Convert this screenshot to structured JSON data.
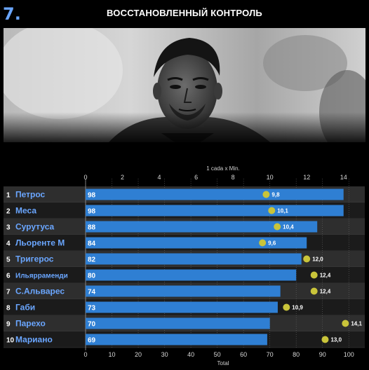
{
  "page": {
    "rank": "7.",
    "title": "ВОССТАНОВЛЕННЫЙ КОНТРОЛЬ"
  },
  "photo": {
    "description_icon": "player-portrait"
  },
  "chart_data": {
    "type": "bar",
    "top_axis_label": "1 cada x Min.",
    "bottom_axis_label": "Total",
    "top_axis_range": [
      0,
      15
    ],
    "top_axis_ticks": [
      0,
      2,
      4,
      6,
      8,
      10,
      12,
      14
    ],
    "bottom_axis_range": [
      0,
      105
    ],
    "bottom_axis_ticks": [
      0,
      10,
      20,
      30,
      40,
      50,
      60,
      70,
      80,
      90,
      100
    ],
    "grid": true,
    "colors": {
      "bar": "#2f7fd3",
      "row_band": "#2e2e2e",
      "marker": "#c9c43a",
      "rank_text": "#ffffff",
      "name_text": "#6aa6ff"
    },
    "series": [
      {
        "name": "Total",
        "values": [
          98,
          98,
          88,
          84,
          82,
          80,
          74,
          73,
          70,
          69
        ]
      },
      {
        "name": "1 cada x Min.",
        "values": [
          9.8,
          10.1,
          10.4,
          9.6,
          12.0,
          12.4,
          12.4,
          10.9,
          14.1,
          13.0
        ]
      }
    ],
    "rows": [
      {
        "rank": "1",
        "name": "Петрос",
        "total": 98,
        "total_label": "98",
        "rate": 9.8,
        "rate_label": "9,8"
      },
      {
        "rank": "2",
        "name": "Меса",
        "total": 98,
        "total_label": "98",
        "rate": 10.1,
        "rate_label": "10,1"
      },
      {
        "rank": "3",
        "name": "Сурутуса",
        "total": 88,
        "total_label": "88",
        "rate": 10.4,
        "rate_label": "10,4"
      },
      {
        "rank": "4",
        "name": "Льоренте М",
        "total": 84,
        "total_label": "84",
        "rate": 9.6,
        "rate_label": "9,6"
      },
      {
        "rank": "5",
        "name": "Тригерос",
        "total": 82,
        "total_label": "82",
        "rate": 12.0,
        "rate_label": "12,0"
      },
      {
        "rank": "6",
        "name": "Ильярраменди",
        "total": 80,
        "total_label": "80",
        "rate": 12.4,
        "rate_label": "12,4"
      },
      {
        "rank": "7",
        "name": "С.Альварес",
        "total": 74,
        "total_label": "74",
        "rate": 12.4,
        "rate_label": "12,4"
      },
      {
        "rank": "8",
        "name": "Габи",
        "total": 73,
        "total_label": "73",
        "rate": 10.9,
        "rate_label": "10,9"
      },
      {
        "rank": "9",
        "name": "Парехо",
        "total": 70,
        "total_label": "70",
        "rate": 14.1,
        "rate_label": "14,1"
      },
      {
        "rank": "10",
        "name": "Мариано",
        "total": 69,
        "total_label": "69",
        "rate": 13.0,
        "rate_label": "13,0"
      }
    ]
  }
}
